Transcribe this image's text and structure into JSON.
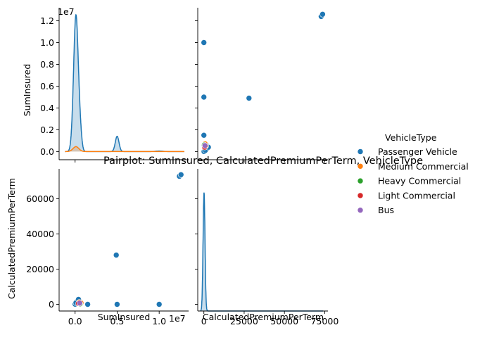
{
  "chart_data": {
    "type": "scatter",
    "title": "Pairplot: SumInsured, CalculatedPremiumPerTerm, VehicleType",
    "variables": [
      "SumInsured",
      "CalculatedPremiumPerTerm"
    ],
    "hue": "VehicleType",
    "grid": false,
    "legend_position": "right",
    "legend": {
      "title": "VehicleType",
      "entries": [
        {
          "name": "Passenger Vehicle",
          "color": "#1f77b4"
        },
        {
          "name": "Medium Commercial",
          "color": "#ff7f0e"
        },
        {
          "name": "Heavy Commercial",
          "color": "#2ca02c"
        },
        {
          "name": "Light Commercial",
          "color": "#d62728"
        },
        {
          "name": "Bus",
          "color": "#9467bd"
        }
      ]
    },
    "axes": {
      "suminsured": {
        "label": "SumInsured",
        "offset_text": "1e7",
        "range": [
          -1.9,
          13.5
        ],
        "ticks": [
          0,
          5,
          10
        ],
        "tick_labels": [
          "0.0",
          "0.5",
          "1.0"
        ],
        "y_ticks": [
          0,
          2,
          4,
          6,
          8,
          10,
          12
        ],
        "y_tick_labels": [
          "0.0",
          "0.2",
          "0.4",
          "0.6",
          "0.8",
          "1.0",
          "1.2"
        ],
        "diag_y_range": [
          -0.75,
          13.2
        ]
      },
      "premium": {
        "label": "CalculatedPremiumPerTerm",
        "range": [
          -3800,
          77000
        ],
        "ticks": [
          0,
          25000,
          50000,
          75000
        ],
        "tick_labels": [
          "0",
          "25000",
          "50000",
          "75000"
        ],
        "y_ticks": [
          0,
          20000,
          40000,
          60000
        ],
        "y_tick_labels": [
          "0",
          "20000",
          "40000",
          "60000"
        ]
      }
    },
    "points_sum_vs_premium": [
      {
        "sum": 12.4,
        "premium": 72800,
        "type": "Passenger Vehicle"
      },
      {
        "sum": 12.6,
        "premium": 73700,
        "type": "Passenger Vehicle"
      },
      {
        "sum": 4.9,
        "premium": 28000,
        "type": "Passenger Vehicle"
      },
      {
        "sum": 10.0,
        "premium": 0,
        "type": "Passenger Vehicle"
      },
      {
        "sum": 5.0,
        "premium": 0,
        "type": "Passenger Vehicle"
      },
      {
        "sum": 1.5,
        "premium": 0,
        "type": "Passenger Vehicle"
      },
      {
        "sum": 0.5,
        "premium": 300,
        "type": "Passenger Vehicle"
      },
      {
        "sum": 0.2,
        "premium": 600,
        "type": "Passenger Vehicle"
      },
      {
        "sum": 0.0,
        "premium": 100,
        "type": "Passenger Vehicle"
      },
      {
        "sum": 0.3,
        "premium": 2200,
        "type": "Passenger Vehicle"
      },
      {
        "sum": 0.6,
        "premium": 1500,
        "type": "Passenger Vehicle"
      },
      {
        "sum": 0.1,
        "premium": 900,
        "type": "Passenger Vehicle"
      },
      {
        "sum": 0.4,
        "premium": 2800,
        "type": "Passenger Vehicle"
      },
      {
        "sum": 0.7,
        "premium": 800,
        "type": "Medium Commercial"
      },
      {
        "sum": 0.5,
        "premium": 1200,
        "type": "Medium Commercial"
      },
      {
        "sum": 0.4,
        "premium": 500,
        "type": "Light Commercial"
      },
      {
        "sum": 0.6,
        "premium": 300,
        "type": "Heavy Commercial"
      },
      {
        "sum": 0.55,
        "premium": 700,
        "type": "Bus"
      }
    ],
    "kde_suminsured": [
      {
        "series": "Passenger Vehicle",
        "peaks": [
          {
            "center": 0.1,
            "height": 12.5,
            "width": 0.28
          },
          {
            "center": 0.6,
            "height": 1.3,
            "width": 0.2
          },
          {
            "center": 5.0,
            "height": 1.4,
            "width": 0.22
          },
          {
            "center": 10.0,
            "height": 0.05,
            "width": 0.4
          }
        ]
      },
      {
        "series": "Medium Commercial",
        "peaks": [
          {
            "center": 0.1,
            "height": 0.45,
            "width": 0.35
          }
        ]
      }
    ],
    "kde_premium": [
      {
        "series": "Passenger Vehicle",
        "peaks": [
          {
            "center": 100,
            "height": 65000,
            "width": 600
          }
        ]
      }
    ],
    "kde_premium_ylim": [
      0,
      78000
    ]
  }
}
